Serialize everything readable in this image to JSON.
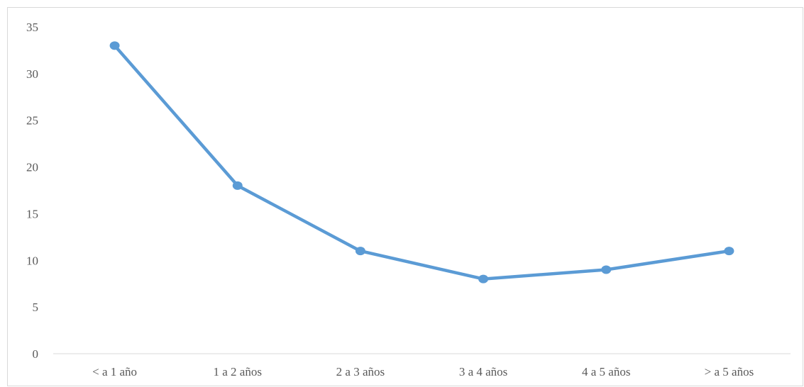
{
  "chart_data": {
    "type": "line",
    "title": "",
    "xlabel": "",
    "ylabel": "",
    "categories": [
      "< a 1 año",
      "1 a 2 años",
      "2 a 3 años",
      "3 a 4 años",
      "4 a 5 años",
      "> a 5 años"
    ],
    "series": [
      {
        "values": [
          33,
          18,
          11,
          8,
          9,
          11
        ],
        "color": "#5b9bd5"
      }
    ],
    "ylim": [
      0,
      35
    ],
    "yticks": [
      0,
      5,
      10,
      15,
      20,
      25,
      30,
      35
    ],
    "grid": false,
    "legend": "none",
    "axis_color": "#d9d9d9",
    "label_color": "#595959"
  }
}
